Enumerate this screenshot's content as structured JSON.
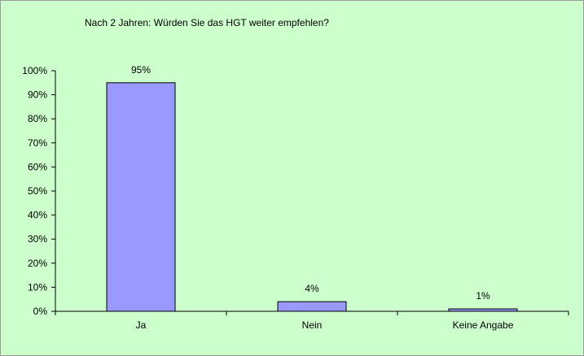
{
  "chart_data": {
    "type": "bar",
    "title": "Nach 2 Jahren: Würden Sie das HGT  weiter empfehlen?",
    "xlabel": "",
    "ylabel": "",
    "categories": [
      "Ja",
      "Nein",
      "Keine Angabe"
    ],
    "values": [
      95,
      4,
      1
    ],
    "data_labels": [
      "95%",
      "4%",
      "1%"
    ],
    "ylim": [
      0,
      100
    ],
    "yticks": [
      "0%",
      "10%",
      "20%",
      "30%",
      "40%",
      "50%",
      "60%",
      "70%",
      "80%",
      "90%",
      "100%"
    ],
    "grid": false,
    "legend": false,
    "colors": {
      "background": "#ccffcc",
      "bar_fill": "#9999ff",
      "bar_stroke": "#000000",
      "axis": "#000000"
    }
  }
}
